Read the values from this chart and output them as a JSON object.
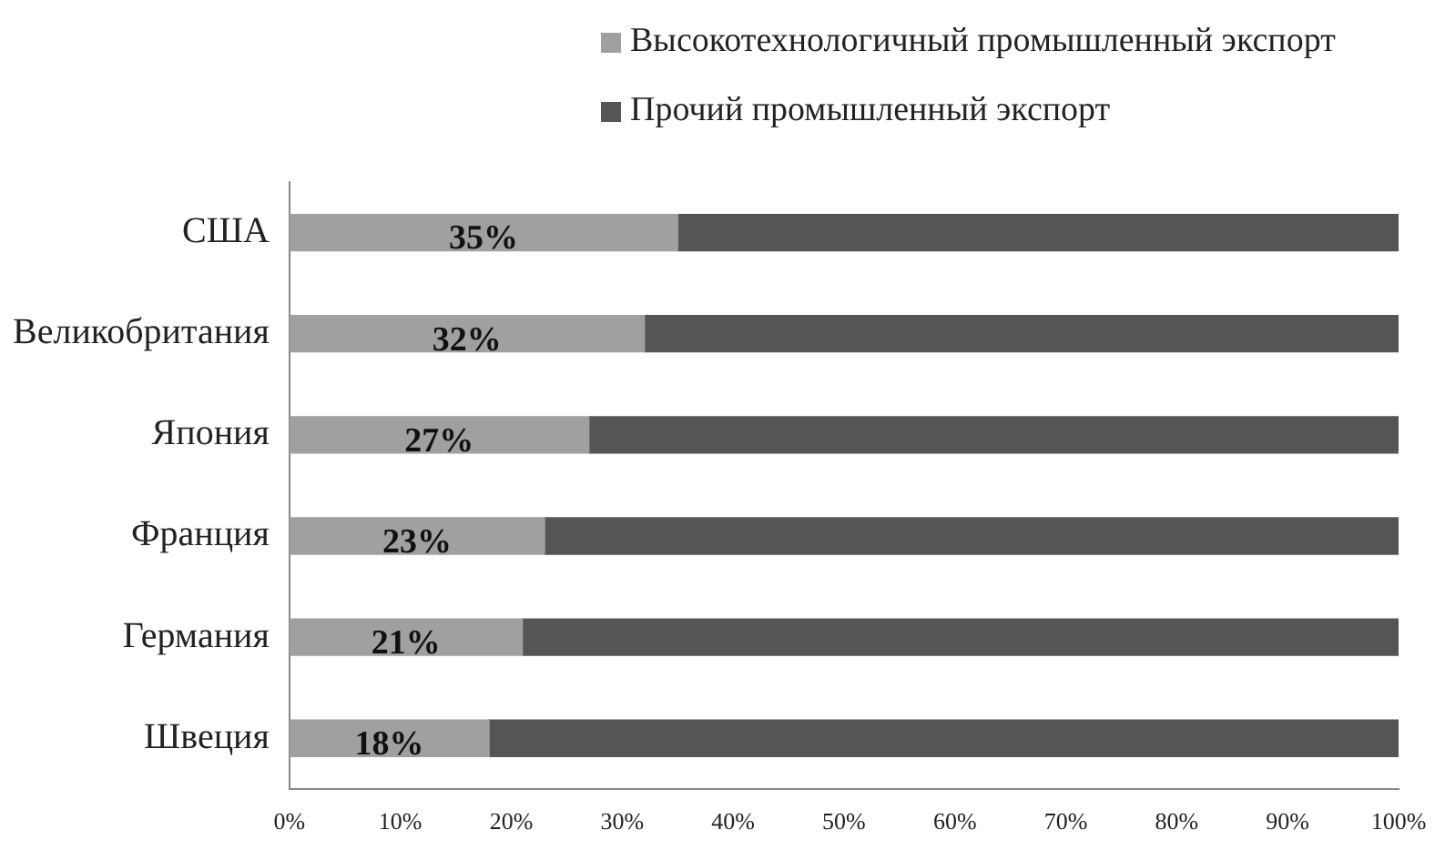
{
  "chart_data": {
    "type": "bar",
    "orientation": "horizontal",
    "stacked": true,
    "categories": [
      "США",
      "Великобритания",
      "Япония",
      "Франция",
      "Германия",
      "Швеция"
    ],
    "series": [
      {
        "name": "Высокотехнологичный промышленный экспорт",
        "color": "#a0a0a0",
        "values": [
          35,
          32,
          27,
          23,
          21,
          18
        ],
        "value_labels": [
          "35%",
          "32%",
          "27%",
          "23%",
          "21%",
          "18%"
        ]
      },
      {
        "name": "Прочий промышленный экспорт",
        "color": "#555555",
        "values": [
          65,
          68,
          73,
          77,
          79,
          82
        ]
      }
    ],
    "xlim": [
      0,
      100
    ],
    "xticks": [
      {
        "value": 0,
        "label": "0%"
      },
      {
        "value": 10,
        "label": "10%"
      },
      {
        "value": 20,
        "label": "20%"
      },
      {
        "value": 30,
        "label": "30%"
      },
      {
        "value": 40,
        "label": "40%"
      },
      {
        "value": 50,
        "label": "50%"
      },
      {
        "value": 60,
        "label": "60%"
      },
      {
        "value": 70,
        "label": "70%"
      },
      {
        "value": 80,
        "label": "80%"
      },
      {
        "value": 90,
        "label": "90%"
      },
      {
        "value": 100,
        "label": "100%"
      }
    ],
    "grid": false,
    "legend": "top"
  }
}
